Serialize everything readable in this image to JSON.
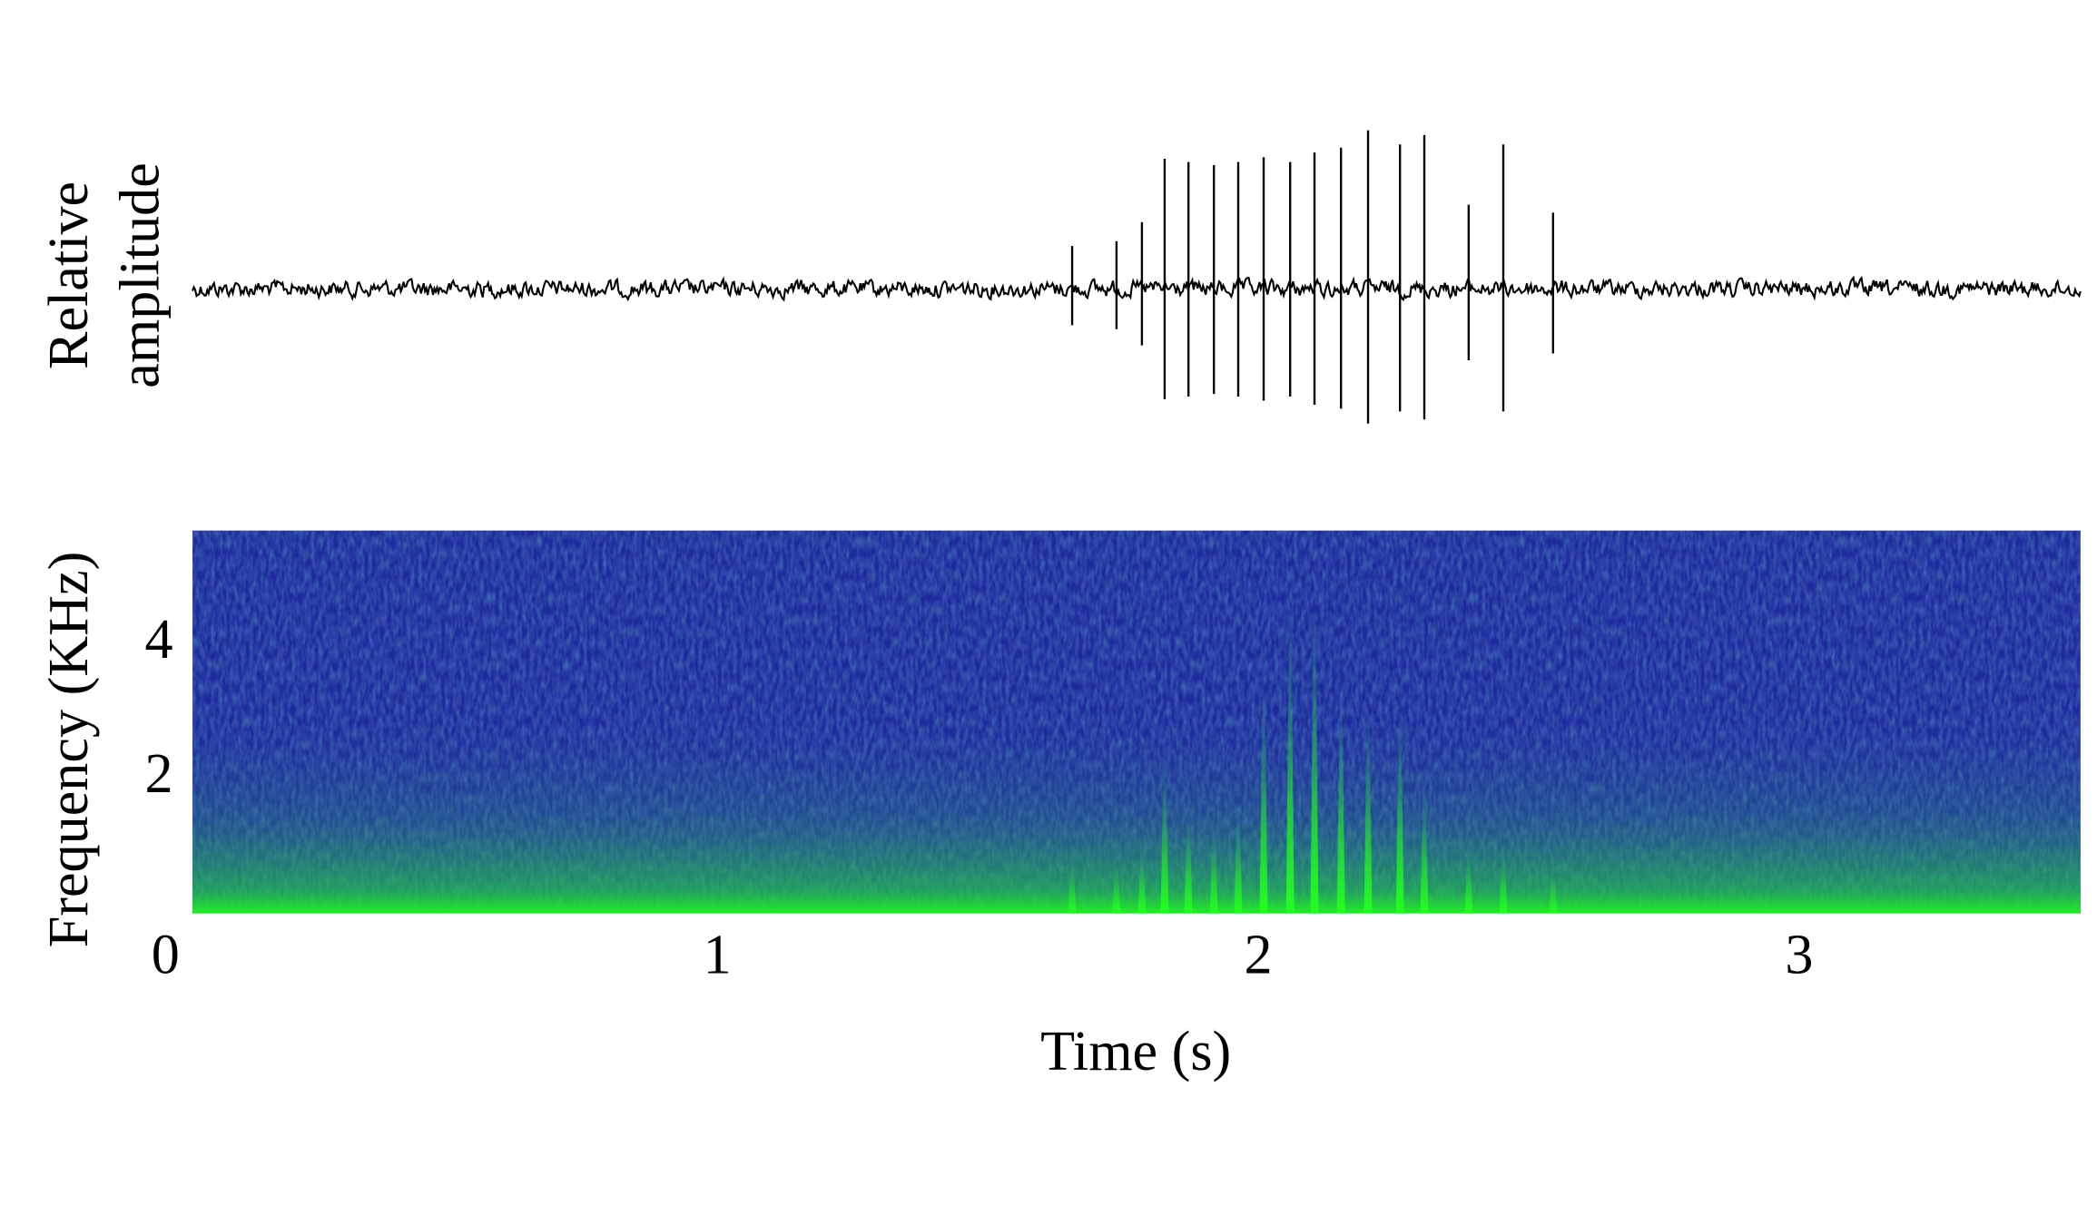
{
  "chart_data": [
    {
      "type": "waveform",
      "ylabel_lines": [
        "Relative",
        "amplitude"
      ],
      "color": "#000000",
      "pulses": {
        "x": [
          1.656,
          1.738,
          1.785,
          1.827,
          1.871,
          1.918,
          1.963,
          2.01,
          2.059,
          2.104,
          2.153,
          2.203,
          2.262,
          2.307,
          2.389,
          2.453,
          2.545
        ],
        "values": [
          0.27,
          0.3,
          0.42,
          0.82,
          0.8,
          0.78,
          0.8,
          0.83,
          0.8,
          0.86,
          0.89,
          1.0,
          0.91,
          0.97,
          0.53,
          0.91,
          0.48
        ]
      }
    },
    {
      "type": "spectrogram",
      "xlabel": "Time (s)",
      "ylabel": "Frequency (KHz)",
      "xlim": [
        0.03,
        3.52
      ],
      "ylim": [
        0,
        5.7
      ],
      "xticks": [
        0,
        1,
        2,
        3
      ],
      "yticks": [
        2,
        4
      ],
      "background": "#1c2a9c",
      "color": "#22ee22",
      "pulses": {
        "x": [
          1.656,
          1.738,
          1.785,
          1.827,
          1.871,
          1.918,
          1.963,
          2.01,
          2.059,
          2.104,
          2.153,
          2.203,
          2.262,
          2.307,
          2.389,
          2.453,
          2.545
        ],
        "values": [
          0.8,
          0.8,
          1.0,
          2.2,
          1.5,
          1.3,
          1.5,
          3.4,
          4.4,
          4.5,
          3.3,
          3.0,
          3.0,
          1.9,
          1.0,
          1.0,
          0.7
        ]
      }
    }
  ]
}
